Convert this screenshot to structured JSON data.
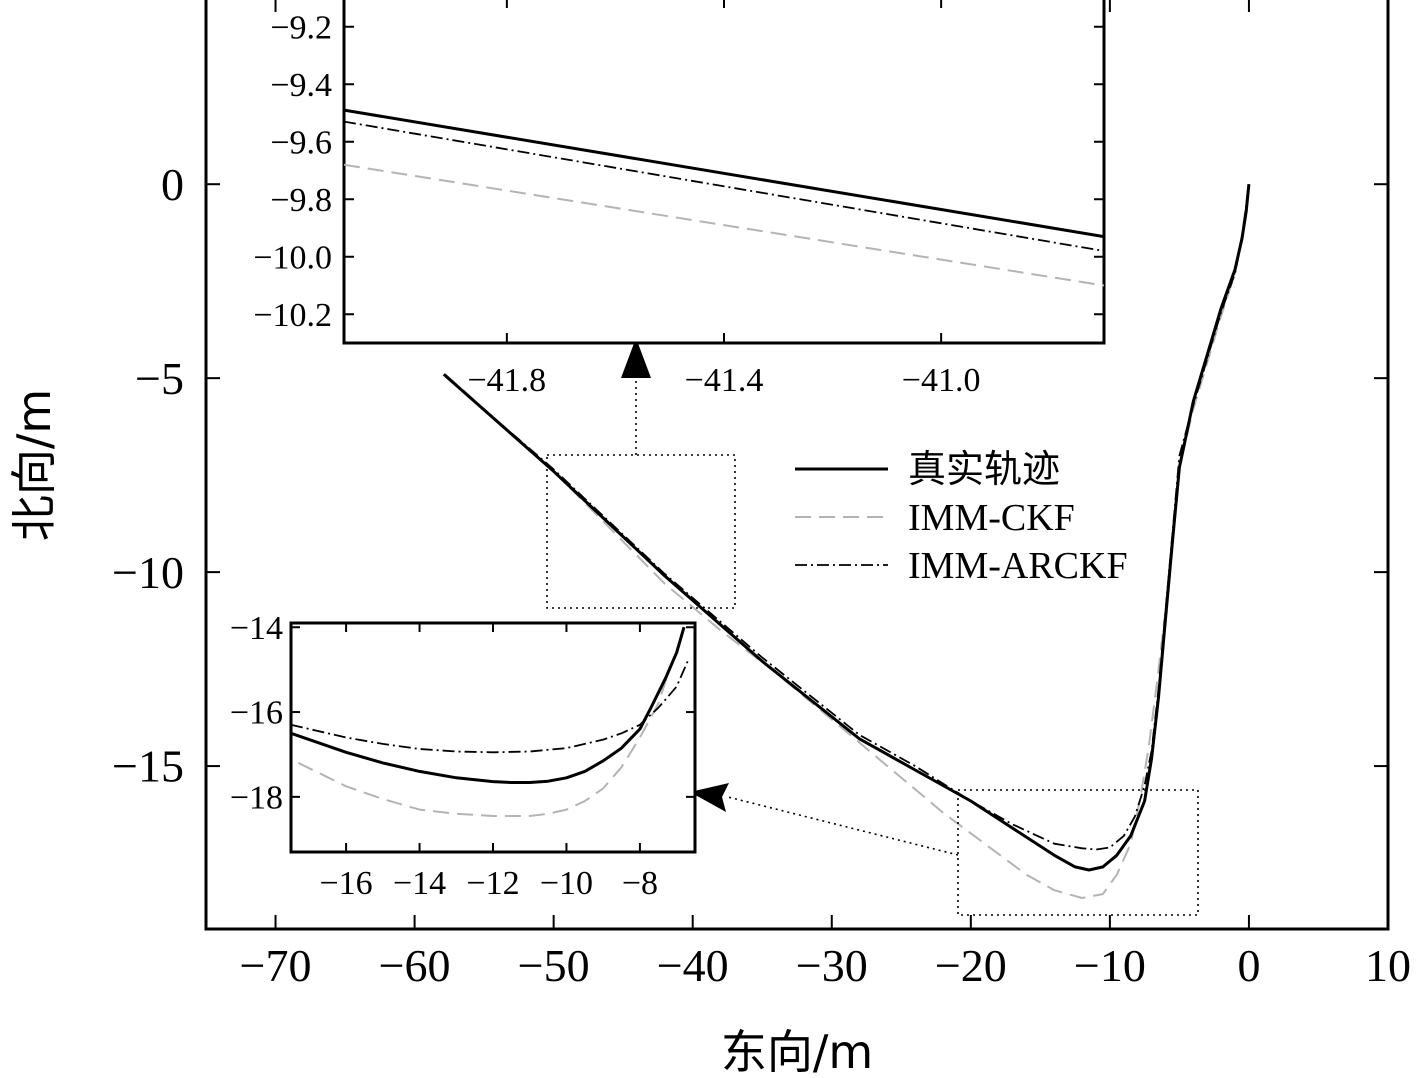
{
  "chart_data": [
    {
      "id": "main",
      "type": "line",
      "xlabel": "东向/m",
      "ylabel": "北向/m",
      "xlim": [
        -75,
        10
      ],
      "ylim": [
        -19.2,
        4.8
      ],
      "xticks": [
        -70,
        -60,
        -50,
        -40,
        -30,
        -20,
        -10,
        0,
        10
      ],
      "xtick_labels": [
        "−70",
        "−60",
        "−50",
        "−40",
        "−30",
        "−20",
        "−10",
        "0",
        "10"
      ],
      "yticks": [
        0,
        -5,
        -10,
        -15
      ],
      "ytick_labels": [
        "0",
        "−5",
        "−10",
        "−15"
      ],
      "grid": false,
      "legend_position": "center-right",
      "series": [
        {
          "name": "真实轨迹",
          "style": "solid",
          "color": "#000000",
          "x": [
            -57.9,
            -50,
            -42,
            -35,
            -28,
            -24,
            -20,
            -17,
            -14,
            -12.5,
            -11.5,
            -10.5,
            -9.5,
            -8.5,
            -7.5,
            -7,
            -6.5,
            -6,
            -5.5,
            -5,
            -4,
            -3,
            -2,
            -1,
            -0.5,
            -0.2,
            0
          ],
          "y": [
            -4.9,
            -7.4,
            -10.1,
            -12.3,
            -14.3,
            -15.1,
            -15.9,
            -16.6,
            -17.3,
            -17.6,
            -17.68,
            -17.6,
            -17.3,
            -16.8,
            -15.9,
            -14.8,
            -13.2,
            -11.2,
            -9.2,
            -7.3,
            -5.6,
            -4.4,
            -3.2,
            -2.2,
            -1.4,
            -0.7,
            0
          ]
        },
        {
          "name": "IMM-CKF",
          "style": "dashed",
          "color": "#b4b4b4",
          "x": [
            -57.8,
            -50,
            -42,
            -38,
            -34,
            -30,
            -26,
            -22,
            -19,
            -16,
            -14,
            -12,
            -10.5,
            -9.5,
            -8.5,
            -7.8,
            -7.2,
            -6.6,
            -6,
            -5.5,
            -5,
            -4,
            -3,
            -2,
            -1,
            -0.5,
            0
          ],
          "y": [
            -4.9,
            -7.4,
            -10.3,
            -11.5,
            -12.6,
            -13.8,
            -15.0,
            -16.2,
            -17.0,
            -17.8,
            -18.2,
            -18.4,
            -18.3,
            -17.8,
            -17.0,
            -15.8,
            -14.5,
            -12.8,
            -11.0,
            -9.0,
            -7.3,
            -5.8,
            -4.6,
            -3.4,
            -2.3,
            -1.3,
            0
          ]
        },
        {
          "name": "IMM-ARCKF",
          "style": "dashdot",
          "color": "#000000",
          "x": [
            -57.8,
            -50,
            -42,
            -35,
            -28,
            -24,
            -20,
            -17,
            -14,
            -12,
            -11,
            -10,
            -9,
            -8.2,
            -7.5,
            -7,
            -6.5,
            -6,
            -5.5,
            -5,
            -4,
            -3,
            -2,
            -1,
            -0.5,
            0
          ],
          "y": [
            -4.95,
            -7.35,
            -10.05,
            -12.2,
            -14.2,
            -15.0,
            -15.9,
            -16.5,
            -17.0,
            -17.12,
            -17.15,
            -17.1,
            -16.8,
            -16.3,
            -15.5,
            -14.6,
            -13.0,
            -11.0,
            -9.0,
            -7.0,
            -5.7,
            -4.5,
            -3.3,
            -2.3,
            -1.4,
            0
          ]
        }
      ]
    },
    {
      "id": "inset-top",
      "type": "line",
      "xlim": [
        -42.1,
        -40.7
      ],
      "ylim": [
        -10.3,
        -9.1
      ],
      "xticks": [
        -41.8,
        -41.4,
        -41.0
      ],
      "xtick_labels": [
        "−41.8",
        "−41.4",
        "−41.0"
      ],
      "yticks": [
        -9.2,
        -9.4,
        -9.6,
        -9.8,
        -10.0,
        -10.2
      ],
      "ytick_labels": [
        "−9.2",
        "−9.4",
        "−9.6",
        "−9.8",
        "−10.0",
        "−10.2"
      ],
      "series": [
        {
          "name": "真实轨迹",
          "style": "solid",
          "color": "#000000",
          "x": [
            -42.1,
            -40.7
          ],
          "y": [
            -9.49,
            -9.93
          ]
        },
        {
          "name": "IMM-CKF",
          "style": "dashed",
          "color": "#b4b4b4",
          "x": [
            -42.1,
            -40.7
          ],
          "y": [
            -9.68,
            -10.1
          ]
        },
        {
          "name": "IMM-ARCKF",
          "style": "dashdot",
          "color": "#000000",
          "x": [
            -42.1,
            -40.7
          ],
          "y": [
            -9.53,
            -9.98
          ]
        }
      ]
    },
    {
      "id": "inset-bottom",
      "type": "line",
      "xlim": [
        -17.5,
        -6.5
      ],
      "ylim": [
        -19.3,
        -13.9
      ],
      "xticks": [
        -16,
        -14,
        -12,
        -10,
        -8
      ],
      "xtick_labels": [
        "−16",
        "−14",
        "−12",
        "−10",
        "−8"
      ],
      "yticks": [
        -14,
        -16,
        -18
      ],
      "ytick_labels": [
        "−14",
        "−16",
        "−18"
      ],
      "series": [
        {
          "name": "真实轨迹",
          "style": "solid",
          "color": "#000000",
          "x": [
            -17.5,
            -16,
            -15,
            -14,
            -13,
            -12,
            -11.5,
            -11,
            -10.5,
            -10,
            -9.5,
            -9,
            -8.5,
            -8,
            -7.7,
            -7.3,
            -7,
            -6.8
          ],
          "y": [
            -16.5,
            -16.95,
            -17.2,
            -17.4,
            -17.55,
            -17.64,
            -17.66,
            -17.66,
            -17.63,
            -17.55,
            -17.4,
            -17.15,
            -16.85,
            -16.4,
            -15.9,
            -15.2,
            -14.6,
            -14.0
          ]
        },
        {
          "name": "IMM-CKF",
          "style": "dashed",
          "color": "#b4b4b4",
          "x": [
            -17.3,
            -16,
            -15,
            -14,
            -13,
            -12,
            -11,
            -10.5,
            -10,
            -9.5,
            -9,
            -8.5,
            -8,
            -7.5,
            -7.2,
            -6.9
          ],
          "y": [
            -17.2,
            -17.75,
            -18.05,
            -18.3,
            -18.4,
            -18.45,
            -18.45,
            -18.4,
            -18.3,
            -18.1,
            -17.8,
            -17.3,
            -16.6,
            -15.8,
            -15.0,
            -14.3
          ]
        },
        {
          "name": "IMM-ARCKF",
          "style": "dashdot",
          "color": "#000000",
          "x": [
            -17.5,
            -16,
            -15,
            -14,
            -13,
            -12,
            -11,
            -10,
            -9,
            -8.5,
            -8,
            -7.5,
            -7,
            -6.7
          ],
          "y": [
            -16.3,
            -16.6,
            -16.75,
            -16.87,
            -16.93,
            -16.95,
            -16.93,
            -16.85,
            -16.65,
            -16.5,
            -16.3,
            -15.9,
            -15.4,
            -14.8
          ]
        }
      ]
    }
  ]
}
